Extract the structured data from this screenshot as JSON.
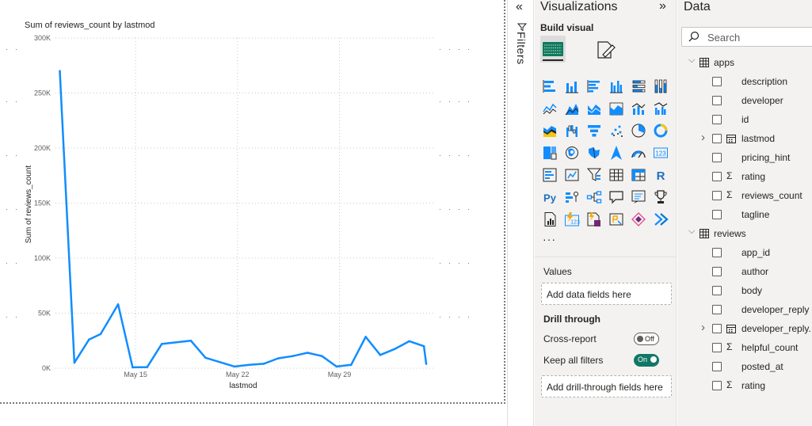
{
  "chart": {
    "title": "Sum of reviews_count by lastmod",
    "ylabel": "Sum of reviews_count",
    "xlabel": "lastmod"
  },
  "chart_data": {
    "type": "line",
    "title": "Sum of reviews_count by lastmod",
    "xlabel": "lastmod",
    "ylabel": "Sum of reviews_count",
    "ylim": [
      0,
      300000
    ],
    "yticks": [
      {
        "value": 0,
        "label": "0K"
      },
      {
        "value": 50000,
        "label": "50K"
      },
      {
        "value": 100000,
        "label": "100K"
      },
      {
        "value": 150000,
        "label": "150K"
      },
      {
        "value": 200000,
        "label": "200K"
      },
      {
        "value": 250000,
        "label": "250K"
      },
      {
        "value": 300000,
        "label": "300K"
      }
    ],
    "xticks": [
      {
        "day": 15,
        "label": "May 15"
      },
      {
        "day": 22,
        "label": "May 22"
      },
      {
        "day": 29,
        "label": "May 29"
      }
    ],
    "xlim": [
      9.5,
      35.5
    ],
    "color": "#118dff",
    "x": [
      9.8,
      10.8,
      11.8,
      12.6,
      13.8,
      14.8,
      15.8,
      16.8,
      18.8,
      19.8,
      21.8,
      22.8,
      23.8,
      24.8,
      25.8,
      26.8,
      27.8,
      28.8,
      29.8,
      30.8,
      31.8,
      32.8,
      33.8,
      34.8,
      35.8
    ],
    "values": [
      270000,
      5000,
      26000,
      31000,
      58000,
      800,
      1000,
      22000,
      25000,
      9500,
      1500,
      3000,
      4000,
      9000,
      11000,
      14000,
      11000,
      1500,
      3000,
      28500,
      12000,
      17500,
      24500,
      20000,
      4000
    ]
  },
  "filters": {
    "label": "Filters",
    "collapse_glyph": "«"
  },
  "viz": {
    "title": "Visualizations",
    "expand_glyph": "»",
    "build_label": "Build visual",
    "more": "···",
    "values_label": "Values",
    "values_well": "Add data fields here",
    "drill_label": "Drill through",
    "cross_report_label": "Cross-report",
    "cross_report_state": "Off",
    "keep_filters_label": "Keep all filters",
    "keep_filters_state": "On",
    "drill_well": "Add drill-through fields here"
  },
  "data_pane": {
    "title": "Data",
    "search_placeholder": "Search",
    "tables": [
      {
        "name": "apps",
        "fields": [
          {
            "name": "description",
            "type": ""
          },
          {
            "name": "developer",
            "type": ""
          },
          {
            "name": "id",
            "type": ""
          },
          {
            "name": "lastmod",
            "type": "date",
            "expandable": true
          },
          {
            "name": "pricing_hint",
            "type": ""
          },
          {
            "name": "rating",
            "type": "sum"
          },
          {
            "name": "reviews_count",
            "type": "sum"
          },
          {
            "name": "tagline",
            "type": ""
          }
        ]
      },
      {
        "name": "reviews",
        "fields": [
          {
            "name": "app_id",
            "type": ""
          },
          {
            "name": "author",
            "type": ""
          },
          {
            "name": "body",
            "type": ""
          },
          {
            "name": "developer_reply",
            "type": ""
          },
          {
            "name": "developer_reply...",
            "type": "date",
            "expandable": true
          },
          {
            "name": "helpful_count",
            "type": "sum"
          },
          {
            "name": "posted_at",
            "type": ""
          },
          {
            "name": "rating",
            "type": "sum"
          }
        ]
      }
    ]
  }
}
